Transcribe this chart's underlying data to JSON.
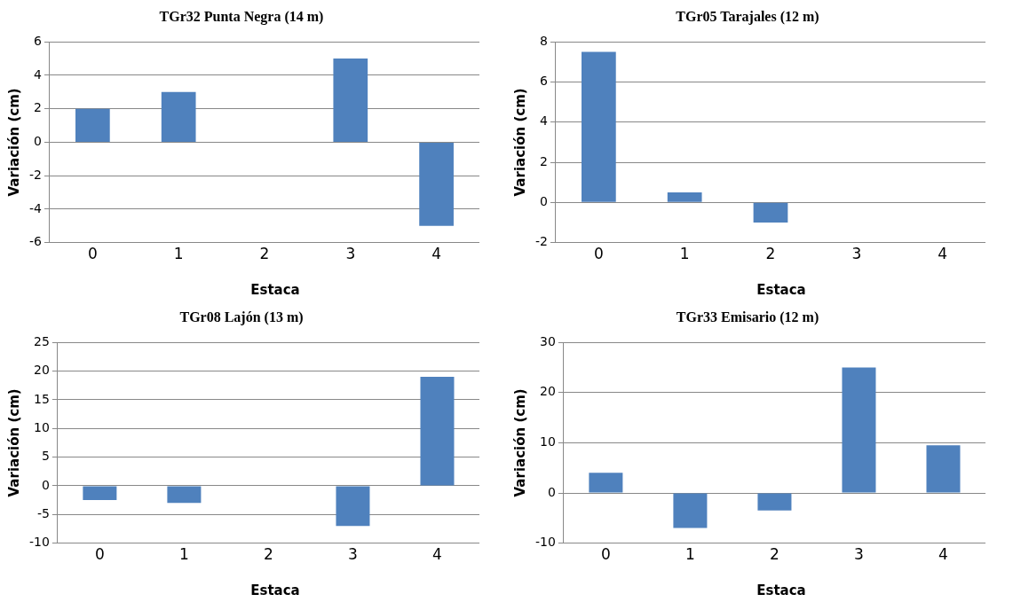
{
  "chart_data": [
    {
      "type": "bar",
      "title": "TGr32 Punta Negra (14 m)",
      "xlabel": "Estaca",
      "ylabel": "Variación (cm)",
      "categories": [
        "0",
        "1",
        "2",
        "3",
        "4"
      ],
      "values": [
        2,
        3,
        0,
        5,
        -5
      ],
      "color": "#4f81bd",
      "ylim": [
        -6,
        6
      ],
      "yticks": [
        -6,
        -4,
        -2,
        0,
        2,
        4,
        6
      ],
      "grid": "y",
      "legend": false
    },
    {
      "type": "bar",
      "title": "TGr05 Tarajales (12 m)",
      "xlabel": "Estaca",
      "ylabel": "Variación (cm)",
      "categories": [
        "0",
        "1",
        "2",
        "3",
        "4"
      ],
      "values": [
        7.5,
        0.5,
        -1,
        0,
        0
      ],
      "color": "#4f81bd",
      "ylim": [
        -2,
        8
      ],
      "yticks": [
        -2,
        0,
        2,
        4,
        6,
        8
      ],
      "grid": "y",
      "legend": false
    },
    {
      "type": "bar",
      "title": "TGr08 Lajón (13 m)",
      "xlabel": "Estaca",
      "ylabel": "Variación (cm)",
      "categories": [
        "0",
        "1",
        "2",
        "3",
        "4"
      ],
      "values": [
        -2.5,
        -3,
        0,
        -7,
        19
      ],
      "color": "#4f81bd",
      "ylim": [
        -10,
        25
      ],
      "yticks": [
        -10,
        -5,
        0,
        5,
        10,
        15,
        20,
        25
      ],
      "grid": "y",
      "legend": false
    },
    {
      "type": "bar",
      "title": "TGr33 Emisario (12 m)",
      "xlabel": "Estaca",
      "ylabel": "Variación (cm)",
      "categories": [
        "0",
        "1",
        "2",
        "3",
        "4"
      ],
      "values": [
        4,
        -7,
        -3.5,
        25,
        9.5
      ],
      "color": "#4f81bd",
      "ylim": [
        -10,
        30
      ],
      "yticks": [
        -10,
        0,
        10,
        20,
        30
      ],
      "grid": "y",
      "legend": false
    }
  ]
}
